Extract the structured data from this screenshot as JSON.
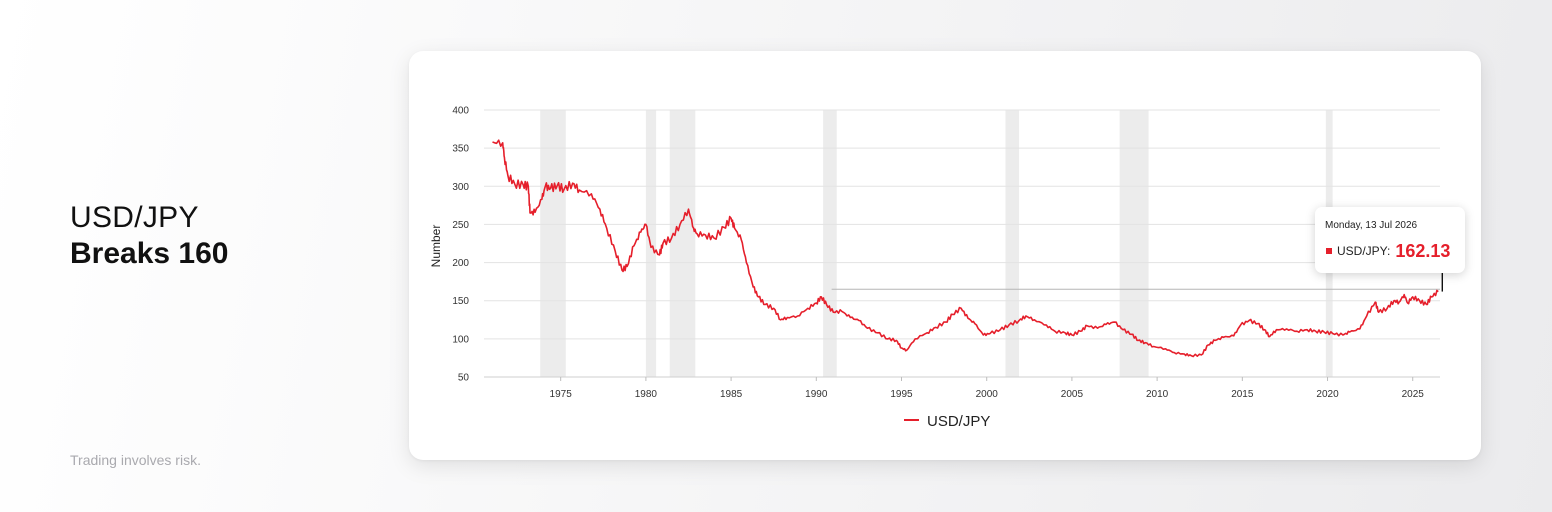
{
  "headline": {
    "line1": "USD/JPY",
    "line2": "Breaks 160"
  },
  "disclaimer": "Trading involves risk.",
  "colors": {
    "series": "#e51f2b",
    "shade": "#ececec",
    "grid": "#e3e3e3"
  },
  "tooltip": {
    "date": "Monday, 13 Jul 2026",
    "series_label": "USD/JPY:",
    "value": "162.13"
  },
  "chart_data": {
    "type": "line",
    "title": "",
    "xlabel": "",
    "ylabel": "Number",
    "xlim": [
      1970.5,
      2026.6
    ],
    "ylim": [
      50,
      400
    ],
    "y_ticks": [
      50,
      100,
      150,
      200,
      250,
      300,
      350,
      400
    ],
    "x_ticks": [
      1975,
      1980,
      1985,
      1990,
      1995,
      2000,
      2005,
      2010,
      2015,
      2020,
      2025
    ],
    "grid": "horizontal",
    "legend_position": "bottom-center",
    "shaded_periods": [
      [
        1973.8,
        1975.3
      ],
      [
        1980.0,
        1980.6
      ],
      [
        1981.4,
        1982.9
      ],
      [
        1990.4,
        1991.2
      ],
      [
        2001.1,
        2001.9
      ],
      [
        2007.8,
        2009.5
      ],
      [
        2019.9,
        2020.3
      ]
    ],
    "reference_line": 165,
    "series": [
      {
        "name": "USD/JPY",
        "x": [
          1971.0,
          1971.6,
          1971.7,
          1971.9,
          1972.3,
          1972.8,
          1973.1,
          1973.2,
          1973.5,
          1973.9,
          1974.1,
          1974.4,
          1974.8,
          1975.2,
          1975.7,
          1976.1,
          1976.8,
          1977.3,
          1977.7,
          1978.2,
          1978.6,
          1978.9,
          1979.3,
          1979.7,
          1980.0,
          1980.3,
          1980.8,
          1981.0,
          1981.5,
          1982.0,
          1982.5,
          1982.8,
          1983.0,
          1983.5,
          1984.0,
          1984.6,
          1985.0,
          1985.2,
          1985.6,
          1985.9,
          1986.3,
          1986.6,
          1987.0,
          1987.5,
          1987.9,
          1988.3,
          1988.9,
          1989.5,
          1990.0,
          1990.3,
          1990.6,
          1991.0,
          1991.5,
          1992.0,
          1992.5,
          1993.0,
          1993.6,
          1994.2,
          1994.7,
          1995.0,
          1995.3,
          1995.8,
          1996.5,
          1997.0,
          1997.6,
          1998.0,
          1998.5,
          1998.9,
          1999.3,
          1999.8,
          2000.2,
          2000.8,
          2001.3,
          2001.9,
          2002.3,
          2002.8,
          2003.5,
          2004.0,
          2004.6,
          2005.0,
          2005.5,
          2005.9,
          2006.5,
          2007.0,
          2007.5,
          2008.0,
          2008.5,
          2008.9,
          2009.3,
          2009.8,
          2010.5,
          2011.0,
          2011.6,
          2012.0,
          2012.6,
          2013.0,
          2013.4,
          2013.9,
          2014.5,
          2014.9,
          2015.4,
          2015.9,
          2016.3,
          2016.6,
          2017.0,
          2017.6,
          2018.2,
          2018.8,
          2019.3,
          2019.8,
          2020.3,
          2020.9,
          2021.3,
          2021.9,
          2022.3,
          2022.8,
          2023.0,
          2023.5,
          2023.9,
          2024.2,
          2024.5,
          2024.7,
          2025.0,
          2025.4,
          2025.8,
          2026.1,
          2026.5
        ],
        "values": [
          358,
          357,
          338,
          314,
          303,
          302,
          300,
          265,
          266,
          283,
          300,
          297,
          301,
          296,
          304,
          295,
          290,
          270,
          245,
          215,
          190,
          195,
          222,
          240,
          250,
          220,
          210,
          225,
          232,
          250,
          270,
          245,
          238,
          236,
          232,
          246,
          258,
          245,
          230,
          200,
          168,
          155,
          145,
          140,
          125,
          128,
          130,
          140,
          147,
          155,
          145,
          135,
          136,
          128,
          124,
          114,
          108,
          100,
          98,
          88,
          85,
          100,
          108,
          115,
          122,
          132,
          140,
          127,
          120,
          105,
          107,
          112,
          118,
          124,
          130,
          125,
          118,
          110,
          108,
          105,
          110,
          117,
          114,
          119,
          122,
          112,
          106,
          98,
          95,
          90,
          87,
          82,
          80,
          78,
          79,
          92,
          98,
          102,
          104,
          118,
          124,
          120,
          112,
          103,
          112,
          113,
          110,
          112,
          110,
          109,
          107,
          105,
          109,
          113,
          130,
          148,
          135,
          140,
          150,
          148,
          158,
          147,
          155,
          150,
          145,
          155,
          162
        ]
      }
    ]
  },
  "legend": {
    "label": "USD/JPY"
  }
}
